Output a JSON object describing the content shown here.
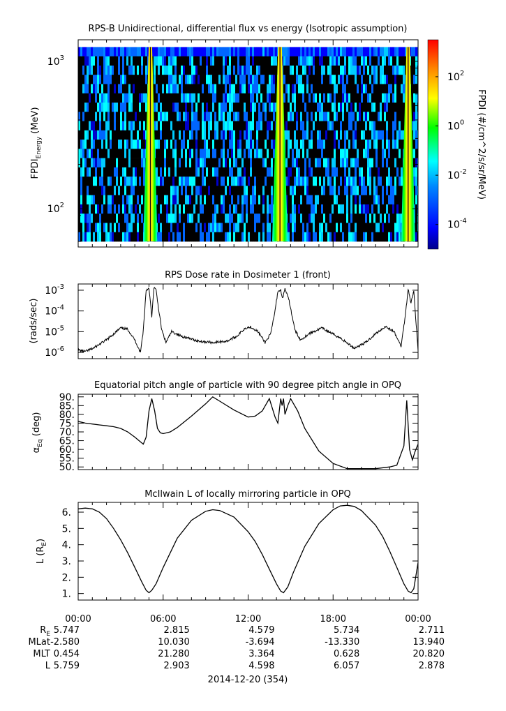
{
  "chart_data": [
    {
      "type": "heatmap",
      "title": "RPS-B  Unidirectional, differential flux vs energy (Isotropic assumption)",
      "ylabel": "FPDI",
      "ylabel_sub": "Energy",
      "ylabel_unit": " (MeV)",
      "yscale": "log",
      "ylim": [
        55,
        1400
      ],
      "yticks": [
        {
          "value": 100,
          "base": "10",
          "exp": "2"
        },
        {
          "value": 1000,
          "base": "10",
          "exp": "3"
        }
      ],
      "xlim_hours": [
        0,
        24
      ],
      "energy_range_mev": [
        60,
        1250
      ],
      "bright_bands_hours": [
        [
          4.6,
          5.6
        ],
        [
          13.7,
          14.8
        ],
        [
          22.8,
          23.8
        ]
      ],
      "colorbar": {
        "label": "FPDI (#/cm^2/s/sr/MeV)",
        "scale": "log",
        "range_exp": [
          -5,
          3.5
        ],
        "ticks": [
          {
            "exp": "2"
          },
          {
            "exp": "0"
          },
          {
            "exp": "-2"
          },
          {
            "exp": "-4"
          }
        ],
        "colors": [
          "#00008b",
          "#0000ff",
          "#0088ff",
          "#00ffff",
          "#00ff00",
          "#ffff00",
          "#ff8800",
          "#ff0000"
        ]
      }
    },
    {
      "type": "line",
      "title": "RPS  Dose rate in Dosimeter 1 (front)",
      "ylabel": "(rads/sec)",
      "yscale": "log",
      "ylim": [
        5e-07,
        0.002
      ],
      "yticks": [
        {
          "value": 0.001,
          "exp": "-3"
        },
        {
          "value": 0.0001,
          "exp": "-4"
        },
        {
          "value": 1e-05,
          "exp": "-5"
        },
        {
          "value": 1e-06,
          "exp": "-6"
        }
      ],
      "x_hours": [
        0,
        0.5,
        1,
        2,
        3,
        3.5,
        4,
        4.4,
        4.6,
        4.8,
        5.0,
        5.2,
        5.35,
        5.5,
        5.7,
        5.9,
        6.2,
        6.6,
        7.3,
        8.5,
        9.5,
        10.5,
        11.2,
        11.8,
        12.2,
        12.7,
        13.2,
        13.6,
        13.9,
        14.1,
        14.3,
        14.45,
        14.6,
        14.9,
        15.3,
        15.7,
        16.3,
        17.2,
        18.5,
        19.5,
        20.3,
        21.0,
        21.7,
        22.3,
        22.8,
        23.1,
        23.3,
        23.5,
        23.7,
        24.0
      ],
      "y": [
        1.3e-06,
        1.1e-06,
        1.5e-06,
        4e-06,
        1.5e-05,
        1.3e-05,
        4e-06,
        1e-06,
        1.2e-05,
        0.001,
        0.0013,
        5e-05,
        0.0014,
        0.001,
        0.0001,
        1.2e-05,
        3e-06,
        1e-05,
        6e-06,
        3.5e-06,
        3e-06,
        3.5e-06,
        6e-06,
        1.5e-05,
        1.7e-05,
        1e-05,
        3e-06,
        8e-06,
        0.0001,
        0.0009,
        0.001,
        0.0004,
        0.0012,
        0.0003,
        1.2e-05,
        4e-06,
        8e-06,
        1.5e-05,
        5e-06,
        1.6e-06,
        3e-06,
        8e-06,
        1.8e-05,
        1e-05,
        2e-06,
        6e-05,
        0.0012,
        0.00025,
        0.0009,
        1.2e-06
      ]
    },
    {
      "type": "line",
      "title": "Equatorial pitch angle of particle with 90 degree pitch angle in OPQ",
      "ylabel": "α",
      "ylabel_sub": "Eq",
      "ylabel_unit": " (deg)",
      "ylim": [
        48.5,
        91.5
      ],
      "yticks": [
        "90.",
        "85.",
        "80.",
        "75.",
        "70.",
        "65.",
        "60.",
        "55.",
        "50."
      ],
      "x_hours": [
        0,
        0.5,
        1,
        1.5,
        2,
        2.5,
        3,
        3.5,
        4,
        4.3,
        4.6,
        4.8,
        5.0,
        5.2,
        5.4,
        5.6,
        5.8,
        6.0,
        6.5,
        7,
        8,
        9,
        9.5,
        10,
        11,
        12,
        12.5,
        13,
        13.5,
        13.9,
        14.1,
        14.3,
        14.4,
        14.5,
        14.6,
        14.8,
        15.0,
        15.5,
        16,
        17,
        18,
        19,
        20,
        21,
        22,
        22.5,
        23.0,
        23.2,
        23.4,
        23.6,
        23.8,
        24.0
      ],
      "y": [
        76,
        75,
        74.5,
        74,
        73.5,
        73,
        72,
        70,
        67,
        65,
        63,
        67,
        82,
        89,
        82,
        72,
        69.5,
        69,
        70,
        72.5,
        79,
        86,
        90,
        87.5,
        82.5,
        78.5,
        79,
        82,
        89,
        78.5,
        75,
        89,
        85,
        89,
        80,
        85,
        89,
        82,
        72,
        59,
        52,
        49,
        49,
        49,
        50,
        51,
        62,
        88,
        60,
        54,
        59,
        63
      ]
    },
    {
      "type": "line",
      "title": "McIlwain L of locally mirroring particle in OPQ",
      "ylabel": "L (R",
      "ylabel_sub": "E",
      "ylabel_unit": ")",
      "ylim": [
        0.6,
        6.6
      ],
      "yticks": [
        "6.",
        "5.",
        "4.",
        "3.",
        "2.",
        "1."
      ],
      "x_hours": [
        0,
        0.5,
        1,
        1.5,
        2,
        2.5,
        3,
        3.5,
        4,
        4.5,
        4.8,
        5.0,
        5.2,
        5.5,
        6,
        7,
        8,
        9,
        9.5,
        10,
        11,
        12,
        12.5,
        13,
        13.5,
        14,
        14.3,
        14.5,
        14.8,
        15.2,
        16,
        17,
        18,
        18.5,
        19,
        19.5,
        20,
        21,
        21.5,
        22,
        22.5,
        23.0,
        23.3,
        23.5,
        23.7,
        24.0
      ],
      "y": [
        6.2,
        6.25,
        6.2,
        6.0,
        5.6,
        5.0,
        4.3,
        3.5,
        2.6,
        1.7,
        1.2,
        1.05,
        1.2,
        1.6,
        2.6,
        4.4,
        5.5,
        6.05,
        6.15,
        6.1,
        5.7,
        4.8,
        4.2,
        3.4,
        2.5,
        1.6,
        1.15,
        1.05,
        1.4,
        2.3,
        3.9,
        5.3,
        6.15,
        6.38,
        6.42,
        6.35,
        6.1,
        5.2,
        4.5,
        3.6,
        2.6,
        1.6,
        1.15,
        1.05,
        1.3,
        2.9
      ]
    }
  ],
  "x_axis": {
    "tick_hours": [
      0,
      6,
      12,
      18,
      24
    ],
    "tick_labels": [
      "00:00",
      "06:00",
      "12:00",
      "18:00",
      "00:00"
    ],
    "date_label": "2014-12-20 (354)",
    "ephemeris": [
      {
        "label": "R",
        "label_sub": "E",
        "values": [
          "5.747",
          "2.815",
          "4.579",
          "5.734",
          "2.711"
        ]
      },
      {
        "label": "MLat",
        "label_sub": "",
        "values": [
          "-2.580",
          "10.030",
          "-3.694",
          "-13.330",
          "13.940"
        ]
      },
      {
        "label": "MLT",
        "label_sub": "",
        "values": [
          "0.454",
          "21.280",
          "3.364",
          "0.628",
          "20.820"
        ]
      },
      {
        "label": "L",
        "label_sub": "",
        "values": [
          "5.759",
          "2.903",
          "4.598",
          "6.057",
          "2.878"
        ]
      }
    ]
  }
}
